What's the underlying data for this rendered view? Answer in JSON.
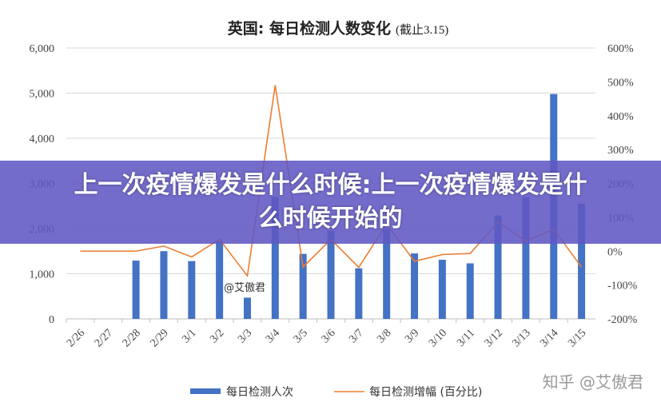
{
  "chart_data": {
    "type": "bar+line",
    "title": "英国: 每日检测人数变化",
    "subtitle": "(截止3.15)",
    "categories": [
      "2/26",
      "2/27",
      "2/28",
      "2/29",
      "3/1",
      "3/2",
      "3/3",
      "3/4",
      "3/5",
      "3/6",
      "3/7",
      "3/8",
      "3/9",
      "3/10",
      "3/11",
      "3/12",
      "3/13",
      "3/14",
      "3/15"
    ],
    "series": [
      {
        "name": "每日检测人次",
        "type": "bar",
        "axis": "left",
        "color": "#4472c4",
        "values": [
          0,
          0,
          1290,
          1500,
          1280,
          1720,
          470,
          2700,
          1440,
          1950,
          1120,
          2000,
          1450,
          1310,
          1230,
          2290,
          2700,
          4980,
          2550
        ]
      },
      {
        "name": "每日检测增幅 (百分比)",
        "type": "line",
        "axis": "right",
        "color": "#ed7d31",
        "values": [
          0,
          0,
          0,
          15,
          -17,
          35,
          -73,
          490,
          -47,
          35,
          -48,
          80,
          -30,
          -10,
          -7,
          86,
          30,
          65,
          -47
        ]
      }
    ],
    "left_axis": {
      "ylim": [
        0,
        6000
      ],
      "ticks": [
        "0",
        "1,000",
        "2,000",
        "3,000",
        "4,000",
        "5,000",
        "6,000"
      ]
    },
    "right_axis": {
      "ylim": [
        -200,
        600
      ],
      "ticks": [
        "-200%",
        "-100%",
        "0%",
        "100%",
        "200%",
        "300%",
        "400%",
        "500%",
        "600%"
      ]
    },
    "grid": true,
    "legend": "bottom"
  },
  "overlay": {
    "banner_text": "上一次疫情爆发是什么时候:上一次疫情爆发是什么时候开始的"
  },
  "annotations": {
    "signature": "@艾傲君",
    "watermark": "知乎 @艾傲君"
  }
}
